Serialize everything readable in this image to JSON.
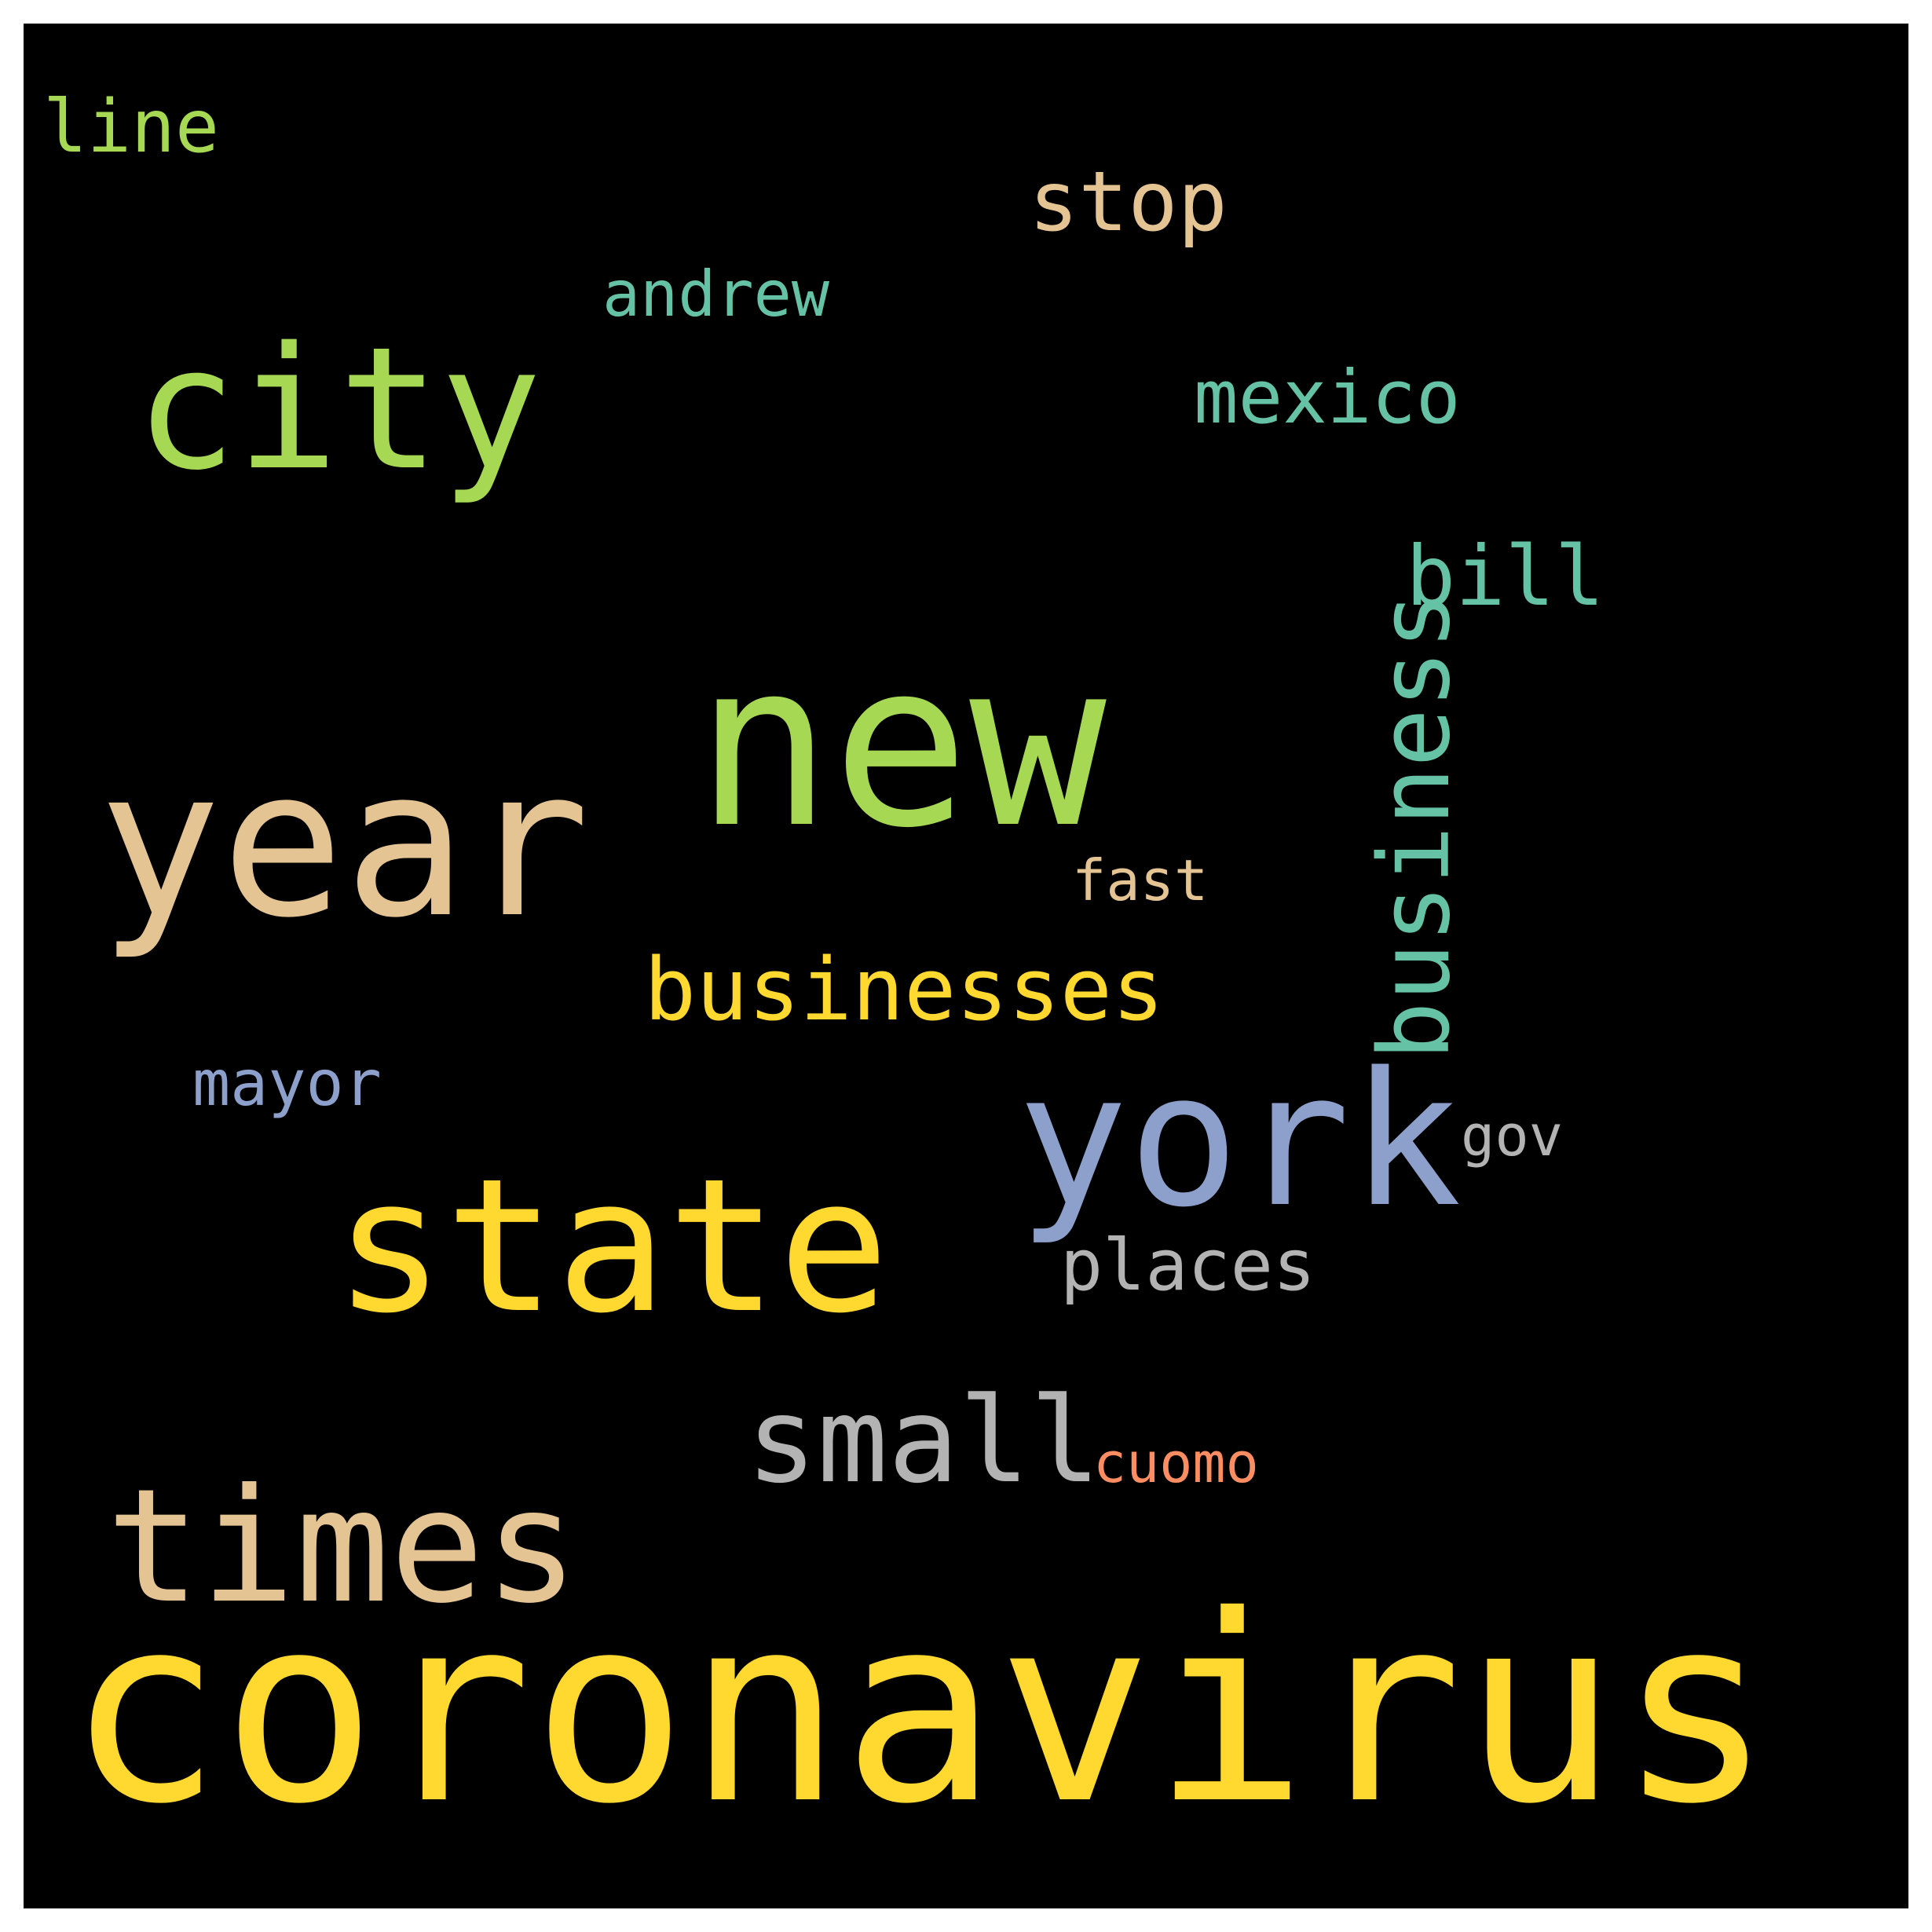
{
  "words": [
    {
      "key": "coronavirus",
      "text": "coronavirus",
      "color": "#FFD92F"
    },
    {
      "key": "new",
      "text": "new",
      "color": "#A6D854"
    },
    {
      "key": "year",
      "text": "year",
      "color": "#E5C494"
    },
    {
      "key": "york",
      "text": "york",
      "color": "#8DA0CB"
    },
    {
      "key": "state",
      "text": "state",
      "color": "#FFD92F"
    },
    {
      "key": "city",
      "text": "city",
      "color": "#A6D854"
    },
    {
      "key": "times",
      "text": "times",
      "color": "#E5C494"
    },
    {
      "key": "business",
      "text": "business",
      "color": "#66C2A5"
    },
    {
      "key": "small",
      "text": "small",
      "color": "#B3B3B3"
    },
    {
      "key": "businesses",
      "text": "businesses",
      "color": "#FFD92F"
    },
    {
      "key": "stop",
      "text": "stop",
      "color": "#E5C494"
    },
    {
      "key": "bill",
      "text": "bill",
      "color": "#66C2A5"
    },
    {
      "key": "mexico",
      "text": "mexico",
      "color": "#66C2A5"
    },
    {
      "key": "places",
      "text": "places",
      "color": "#B3B3B3"
    },
    {
      "key": "line",
      "text": "line",
      "color": "#A6D854"
    },
    {
      "key": "andrew",
      "text": "andrew",
      "color": "#66C2A5"
    },
    {
      "key": "mayor",
      "text": "mayor",
      "color": "#8DA0CB"
    },
    {
      "key": "fast",
      "text": "fast",
      "color": "#E5C494"
    },
    {
      "key": "gov",
      "text": "gov",
      "color": "#B3B3B3"
    },
    {
      "key": "cuomo",
      "text": "cuomo",
      "color": "#FC8D62"
    }
  ]
}
